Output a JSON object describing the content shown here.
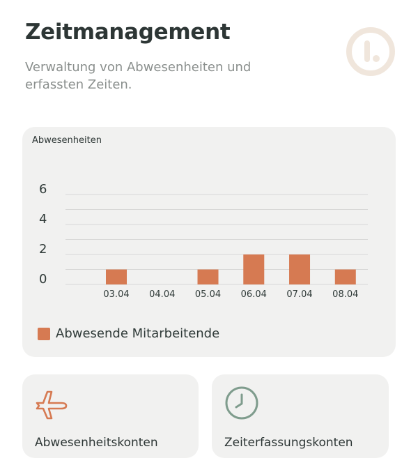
{
  "header": {
    "title": "Zeitmanagement",
    "subtitle": "Verwaltung von Abwesenheiten und erfassten Zeiten.",
    "logo_icon": "brand-logo-icon"
  },
  "colors": {
    "accent": "#d67a52",
    "card_bg": "#f1f1f0",
    "logo": "#f0e6dc",
    "clock_icon": "#7f9c8d"
  },
  "chart_data": {
    "type": "bar",
    "title": "Abwesenheiten",
    "categories": [
      "03.04",
      "04.04",
      "05.04",
      "06.04",
      "07.04",
      "08.04"
    ],
    "series": [
      {
        "name": "Abwesende Mitarbeitende",
        "values": [
          1,
          0,
          1,
          2,
          2,
          1
        ],
        "color": "#d67a52"
      }
    ],
    "y_ticks": [
      "0",
      "2",
      "4",
      "6"
    ],
    "ylim": [
      0,
      6
    ],
    "grid": true,
    "legend_position": "bottom-left"
  },
  "tiles": [
    {
      "label": "Abwesenheitskonten",
      "icon": "airplane-icon"
    },
    {
      "label": "Zeiterfassungskonten",
      "icon": "clock-icon"
    }
  ]
}
